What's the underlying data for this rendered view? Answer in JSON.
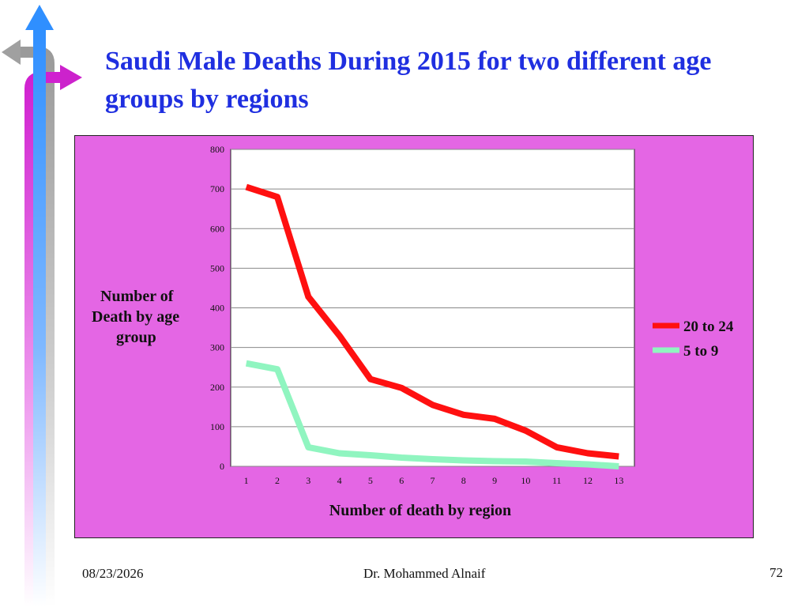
{
  "slide": {
    "title": "Saudi Male Deaths During 2015 for two different age groups by regions",
    "date": "08/23/2026",
    "author": "Dr. Mohammed Alnaif",
    "page_number": "72"
  },
  "colors": {
    "title": "#1f2fe0",
    "panel": "#e466e4",
    "plot_area": "#ffffff",
    "series_20_24": "#ff1010",
    "series_5_9": "#90f5c0"
  },
  "chart_data": {
    "type": "line",
    "title": "",
    "xlabel": "Number of death by region",
    "ylabel_lines": [
      "Number of",
      "Death by age",
      "group"
    ],
    "x": [
      1,
      2,
      3,
      4,
      5,
      6,
      7,
      8,
      9,
      10,
      11,
      12,
      13
    ],
    "x_tick_labels": [
      "1",
      "2",
      "3",
      "4",
      "5",
      "6",
      "7",
      "8",
      "9",
      "10",
      "11",
      "12",
      "13"
    ],
    "y_ticks": [
      0,
      100,
      200,
      300,
      400,
      500,
      600,
      700,
      800
    ],
    "y_tick_labels": [
      "0",
      "100",
      "200",
      "300",
      "400",
      "500",
      "600",
      "700",
      "800"
    ],
    "ylim": [
      0,
      800
    ],
    "grid": true,
    "legend_position": "right",
    "series": [
      {
        "name": "20 to 24",
        "values": [
          705,
          680,
          428,
          330,
          220,
          198,
          155,
          130,
          120,
          90,
          48,
          33,
          25
        ]
      },
      {
        "name": "5 to 9",
        "values": [
          260,
          245,
          48,
          33,
          28,
          22,
          18,
          15,
          13,
          12,
          8,
          5,
          0
        ]
      }
    ]
  }
}
